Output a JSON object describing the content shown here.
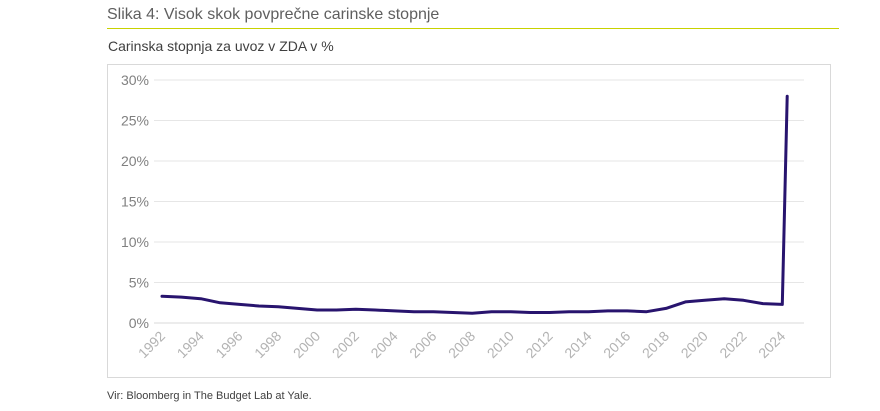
{
  "figure": {
    "title": "Slika 4: Visok skok povprečne carinske stopnje",
    "source": "Vir: Bloomberg in The Budget Lab at Yale."
  },
  "colors": {
    "title_rule": "#c8d200",
    "line": "#28146e",
    "grid": "#e6e6e6"
  },
  "chart_data": {
    "type": "line",
    "title": "Carinska stopnja za uvoz v ZDA v %",
    "xlabel": "",
    "ylabel": "",
    "x_tick_labels": [
      "1992",
      "1994",
      "1996",
      "1998",
      "2000",
      "2002",
      "2004",
      "2006",
      "2008",
      "2010",
      "2012",
      "2014",
      "2016",
      "2018",
      "2020",
      "2022",
      "2024"
    ],
    "y_tick_labels": [
      "0%",
      "5%",
      "10%",
      "15%",
      "20%",
      "25%",
      "30%"
    ],
    "y_ticks": [
      0,
      5,
      10,
      15,
      20,
      25,
      30
    ],
    "xlim": [
      1992,
      2024.5
    ],
    "ylim": [
      0,
      30
    ],
    "grid": true,
    "legend": "none",
    "series": [
      {
        "x": [
          1992,
          1993,
          1994,
          1995,
          1996,
          1997,
          1998,
          1999,
          2000,
          2001,
          2002,
          2003,
          2004,
          2005,
          2006,
          2007,
          2008,
          2009,
          2010,
          2011,
          2012,
          2013,
          2014,
          2015,
          2016,
          2017,
          2018,
          2019,
          2020,
          2021,
          2022,
          2023,
          2024,
          2024.25
        ],
        "values": [
          3.3,
          3.2,
          3.0,
          2.5,
          2.3,
          2.1,
          2.0,
          1.8,
          1.6,
          1.6,
          1.7,
          1.6,
          1.5,
          1.4,
          1.4,
          1.3,
          1.2,
          1.4,
          1.4,
          1.3,
          1.3,
          1.4,
          1.4,
          1.5,
          1.5,
          1.4,
          1.8,
          2.6,
          2.8,
          3.0,
          2.8,
          2.4,
          2.3,
          28.0
        ]
      }
    ]
  }
}
